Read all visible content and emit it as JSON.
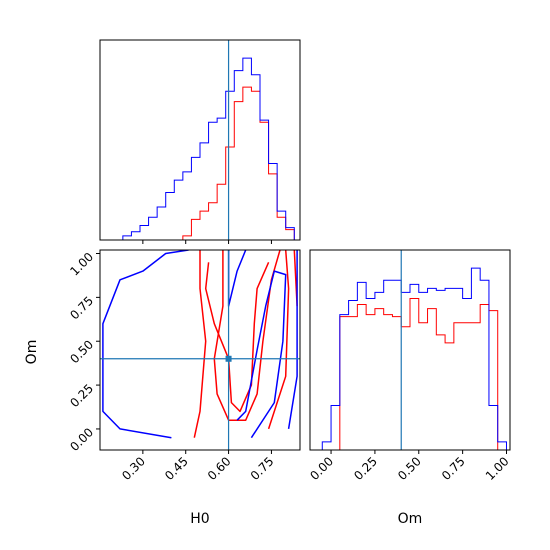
{
  "colors": {
    "series_a": "#ff0000",
    "series_b": "#0000ff",
    "truth": "#1f77b4",
    "axes": "#000000"
  },
  "labels": {
    "x_left": "H0",
    "x_right": "Om",
    "y_left": "Om"
  },
  "chart_data": [
    {
      "panel": "H0 marginal histogram",
      "type": "histogram",
      "xlim": [
        0.15,
        0.85
      ],
      "truth_x": 0.6,
      "show_y_ticks": false,
      "bin_edges": [
        0.2,
        0.23,
        0.26,
        0.29,
        0.32,
        0.35,
        0.38,
        0.41,
        0.44,
        0.47,
        0.5,
        0.53,
        0.56,
        0.59,
        0.62,
        0.65,
        0.68,
        0.71,
        0.74,
        0.77,
        0.8,
        0.83
      ],
      "series": [
        {
          "name": "",
          "color": "#ff0000",
          "counts": [
            0,
            0,
            0,
            0,
            0,
            0,
            0,
            0,
            2,
            10,
            14,
            18,
            27,
            45,
            67,
            74,
            72,
            57,
            32,
            11,
            5
          ]
        },
        {
          "name": "",
          "color": "#0000ff",
          "counts": [
            0,
            2,
            4,
            7,
            11,
            16,
            23,
            29,
            33,
            40,
            47,
            57,
            59,
            72,
            82,
            88,
            80,
            58,
            37,
            14,
            6
          ]
        }
      ]
    },
    {
      "panel": "Om marginal histogram",
      "type": "histogram",
      "xlim": [
        -0.12,
        1.02
      ],
      "truth_x": 0.4,
      "show_y_ticks": false,
      "x_ticks": [
        "0.00",
        "0.25",
        "0.50",
        "0.75",
        "1.00"
      ],
      "x_tick_values": [
        0.0,
        0.25,
        0.5,
        0.75,
        1.0
      ],
      "bin_edges": [
        -0.05,
        0.0,
        0.05,
        0.1,
        0.15,
        0.2,
        0.25,
        0.3,
        0.35,
        0.4,
        0.45,
        0.5,
        0.55,
        0.6,
        0.65,
        0.7,
        0.75,
        0.8,
        0.85,
        0.9,
        0.95,
        1.0
      ],
      "series": [
        {
          "name": "",
          "color": "#ff0000",
          "counts": [
            0,
            0,
            66,
            66,
            72,
            67,
            70,
            67,
            66,
            61,
            75,
            63,
            70,
            57,
            53,
            63,
            63,
            63,
            72,
            69,
            0
          ]
        },
        {
          "name": "",
          "color": "#0000ff",
          "counts": [
            4,
            22,
            67,
            74,
            83,
            75,
            78,
            84,
            84,
            78,
            82,
            78,
            80,
            79,
            80,
            80,
            75,
            90,
            84,
            22,
            4
          ]
        }
      ]
    },
    {
      "panel": "H0 vs Om 2D contours",
      "type": "contour",
      "xlim": [
        0.15,
        0.85
      ],
      "ylim": [
        -0.12,
        1.02
      ],
      "truth": [
        0.6,
        0.4
      ],
      "x_ticks": [
        "0.30",
        "0.45",
        "0.60",
        "0.75"
      ],
      "x_tick_values": [
        0.3,
        0.45,
        0.6,
        0.75
      ],
      "y_ticks": [
        "0.00",
        "0.25",
        "0.50",
        "0.75",
        "1.00"
      ],
      "y_tick_values": [
        0.0,
        0.25,
        0.5,
        0.75,
        1.0
      ],
      "xlabel": "H0",
      "ylabel": "Om",
      "series": [
        {
          "name": "",
          "color": "#ff0000",
          "contours": [
            [
              [
                0.48,
                -0.05
              ],
              [
                0.5,
                0.1
              ],
              [
                0.52,
                0.5
              ],
              [
                0.5,
                0.8
              ],
              [
                0.5,
                1.02
              ]
            ],
            [
              [
                0.58,
                1.02
              ],
              [
                0.58,
                0.7
              ],
              [
                0.55,
                0.4
              ],
              [
                0.56,
                0.2
              ],
              [
                0.6,
                0.05
              ],
              [
                0.66,
                0.05
              ],
              [
                0.7,
                0.2
              ],
              [
                0.72,
                0.5
              ],
              [
                0.75,
                0.85
              ],
              [
                0.78,
                1.02
              ]
            ],
            [
              [
                0.53,
                0.95
              ],
              [
                0.52,
                0.8
              ],
              [
                0.55,
                0.6
              ],
              [
                0.6,
                0.4
              ],
              [
                0.61,
                0.15
              ],
              [
                0.64,
                0.1
              ],
              [
                0.68,
                0.25
              ],
              [
                0.69,
                0.6
              ],
              [
                0.7,
                0.8
              ],
              [
                0.74,
                0.95
              ]
            ],
            [
              [
                0.74,
                0.0
              ],
              [
                0.8,
                0.3
              ],
              [
                0.81,
                0.8
              ],
              [
                0.8,
                1.02
              ]
            ],
            [
              [
                0.84,
                0.7
              ],
              [
                0.83,
                1.02
              ]
            ]
          ]
        },
        {
          "name": "",
          "color": "#0000ff",
          "contours": [
            [
              [
                0.4,
                -0.05
              ],
              [
                0.22,
                0.0
              ],
              [
                0.16,
                0.1
              ],
              [
                0.16,
                0.6
              ],
              [
                0.22,
                0.85
              ],
              [
                0.3,
                0.9
              ],
              [
                0.38,
                1.0
              ],
              [
                0.46,
                1.02
              ]
            ],
            [
              [
                0.68,
                -0.05
              ],
              [
                0.76,
                0.15
              ],
              [
                0.79,
                0.5
              ],
              [
                0.8,
                0.88
              ],
              [
                0.76,
                0.9
              ],
              [
                0.73,
                0.7
              ],
              [
                0.7,
                0.45
              ],
              [
                0.66,
                0.1
              ],
              [
                0.63,
                0.05
              ]
            ],
            [
              [
                0.81,
                0.0
              ],
              [
                0.84,
                0.3
              ],
              [
                0.84,
                1.02
              ]
            ],
            [
              [
                0.6,
                1.02
              ],
              [
                0.6,
                0.7
              ],
              [
                0.63,
                0.9
              ],
              [
                0.66,
                1.02
              ]
            ]
          ]
        }
      ]
    }
  ]
}
